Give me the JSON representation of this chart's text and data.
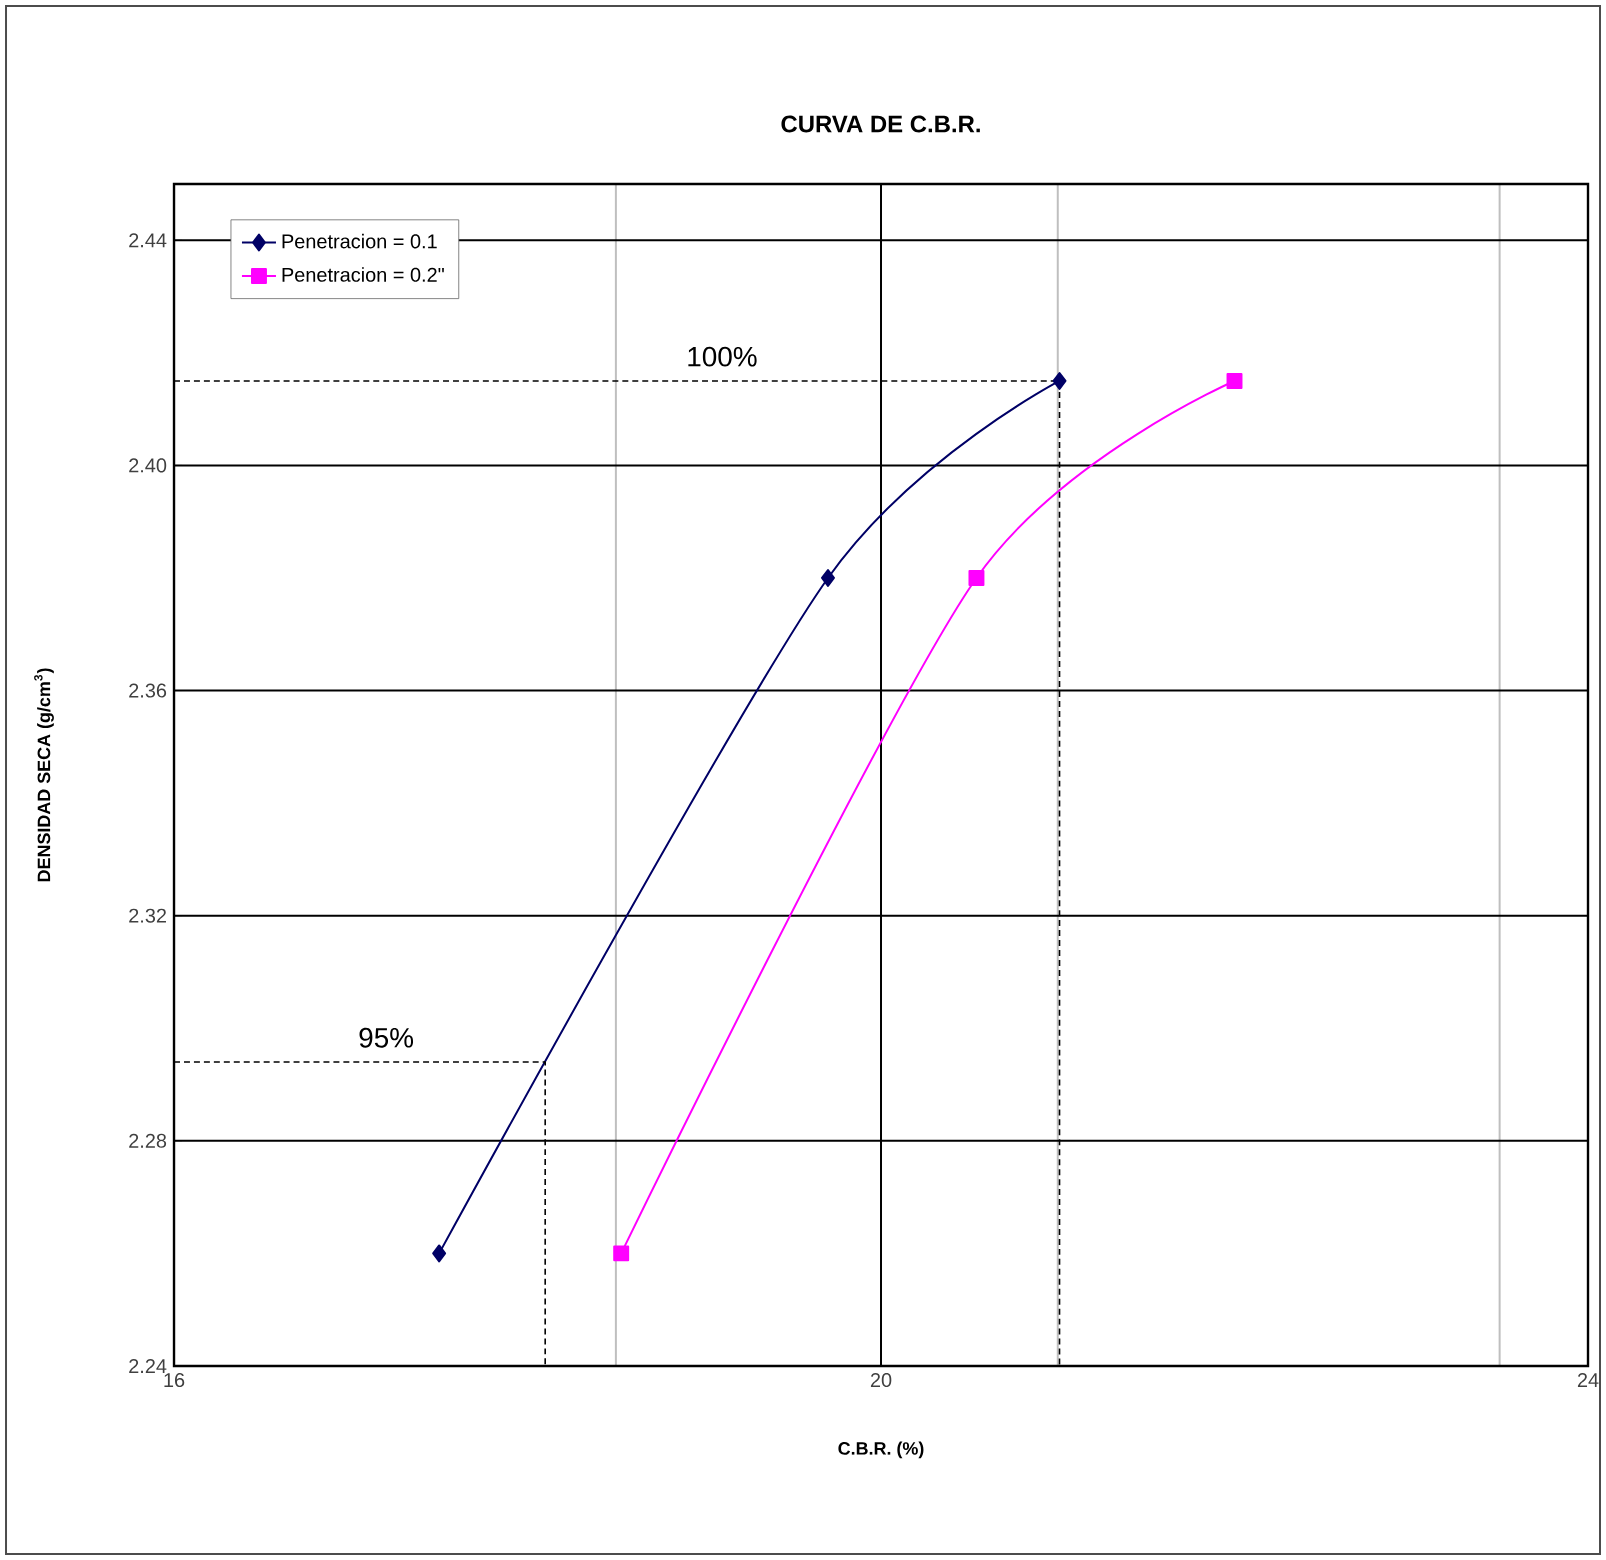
{
  "chart_data": {
    "type": "line",
    "title": "CURVA DE C.B.R.",
    "xlabel": "C.B.R. (%)",
    "ylabel": "DENSIDAD SECA (g/cm$^{3}$)",
    "xlim": [
      16,
      24
    ],
    "ylim": [
      2.24,
      2.45
    ],
    "xticks": [
      16,
      {
        "value": 18.5,
        "label": null
      },
      20,
      {
        "value": 21,
        "label": null
      },
      {
        "value": 23.5,
        "label": null
      },
      24
    ],
    "yticks": [
      2.24,
      2.28,
      2.32,
      2.36,
      {
        "value": 2.4,
        "label": "2.40"
      },
      2.44
    ],
    "grid": true,
    "legend": "top left",
    "series": [
      {
        "name": "Penetracion = 0.1",
        "color": "#000066",
        "marker": "diamond",
        "x": [
          17.5,
          19.7,
          21.01
        ],
        "values": [
          2.26,
          2.38,
          2.415
        ]
      },
      {
        "name": "Penetracion = 0.2\"",
        "color": "#ff00ff",
        "marker": "square",
        "x": [
          18.53,
          20.54,
          22.0
        ],
        "values": [
          2.26,
          2.38,
          2.415
        ]
      },
      {
        "color": "#000000",
        "marker": "none",
        "line_style": "dashed",
        "x": [
          16,
          21.01,
          21.01
        ],
        "values": [
          2.415,
          2.415,
          2.24
        ]
      },
      {
        "color": "#000000",
        "marker": "none",
        "line_style": "dashed",
        "x": [
          16,
          18.1,
          18.1
        ],
        "values": [
          2.294,
          2.294,
          2.24
        ]
      }
    ],
    "annotations": [
      {
        "text": "100%",
        "x": 19.1,
        "y": 2.415
      },
      {
        "text": "95%",
        "x": 17.2,
        "y": 2.294
      }
    ]
  }
}
